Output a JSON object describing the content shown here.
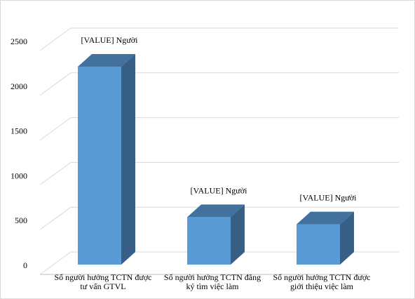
{
  "chart_data": {
    "type": "bar",
    "style": "3d-column",
    "categories": [
      [
        "Số người hưởng TCTN được",
        "tư vấn GTVL"
      ],
      [
        "Số người hưởng TCTN đăng",
        "ký tìm việc làm"
      ],
      [
        "Số người hưởng TCTN được",
        "giới thiệu việc làm"
      ]
    ],
    "values": [
      2210,
      530,
      450
    ],
    "data_labels": [
      "[VALUE] Người",
      "[VALUE] Người",
      "[VALUE] Người"
    ],
    "y_ticks": [
      "0",
      "500",
      "1000",
      "1500",
      "2000",
      "2500"
    ],
    "ylim": [
      0,
      2500
    ],
    "grid": true,
    "legend": "none",
    "colors": {
      "bar_front": "#5b9bd5",
      "bar_top": "#41719c",
      "bar_side": "#375f85",
      "gridline": "#d9d9d9",
      "axis_line": "#bfbfbf"
    }
  }
}
